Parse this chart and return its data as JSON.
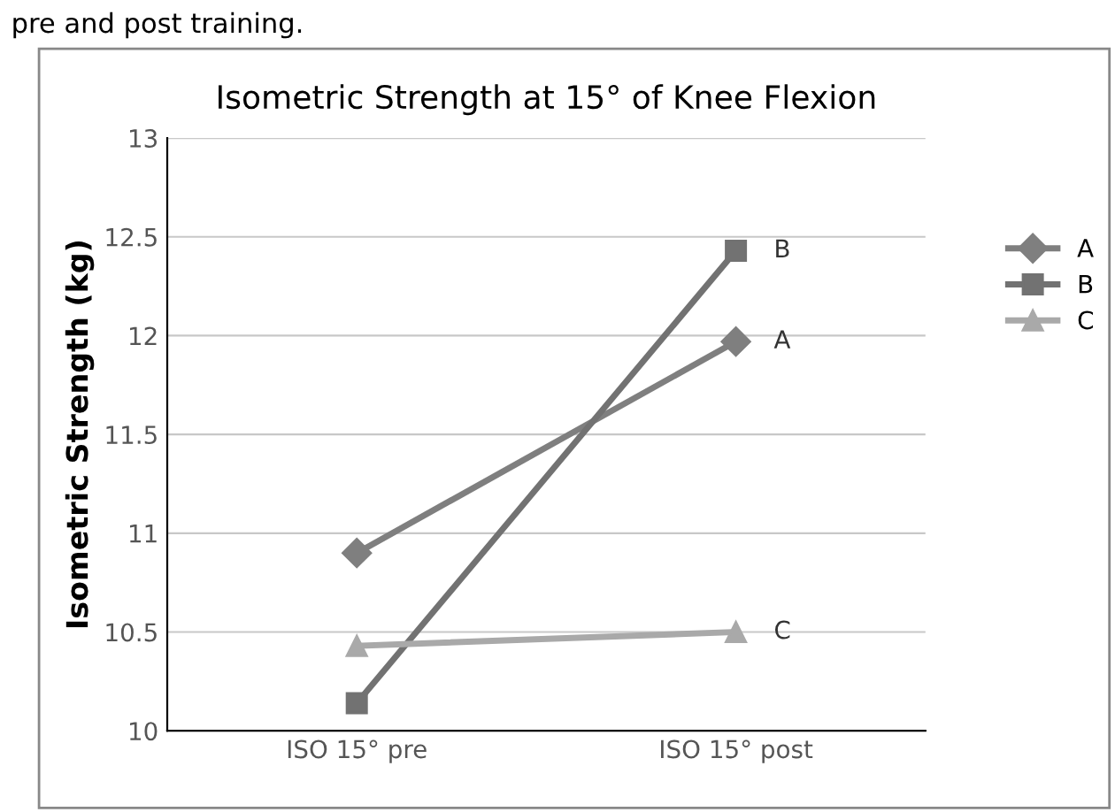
{
  "chart_data": {
    "type": "line",
    "title": "Isometric Strength at 15° of Knee Flexion",
    "ylabel": "Isometric Strength (kg)",
    "annotations": [
      "pre and post training."
    ],
    "categories": [
      "ISO 15° pre",
      "ISO 15° post"
    ],
    "series": [
      {
        "name": "A",
        "color": "#7f7f7f",
        "values": [
          10.9,
          11.97
        ],
        "marker": "diamond"
      },
      {
        "name": "B",
        "color": "#727272",
        "values": [
          10.14,
          12.43
        ],
        "marker": "square"
      },
      {
        "name": "C",
        "color": "#a9a9a9",
        "values": [
          10.43,
          10.5
        ],
        "marker": "triangle"
      }
    ],
    "ylim": [
      10,
      13
    ],
    "yticks": [
      10,
      10.5,
      11,
      11.5,
      12,
      12.5,
      13
    ],
    "grid": "y",
    "legend": "right"
  }
}
